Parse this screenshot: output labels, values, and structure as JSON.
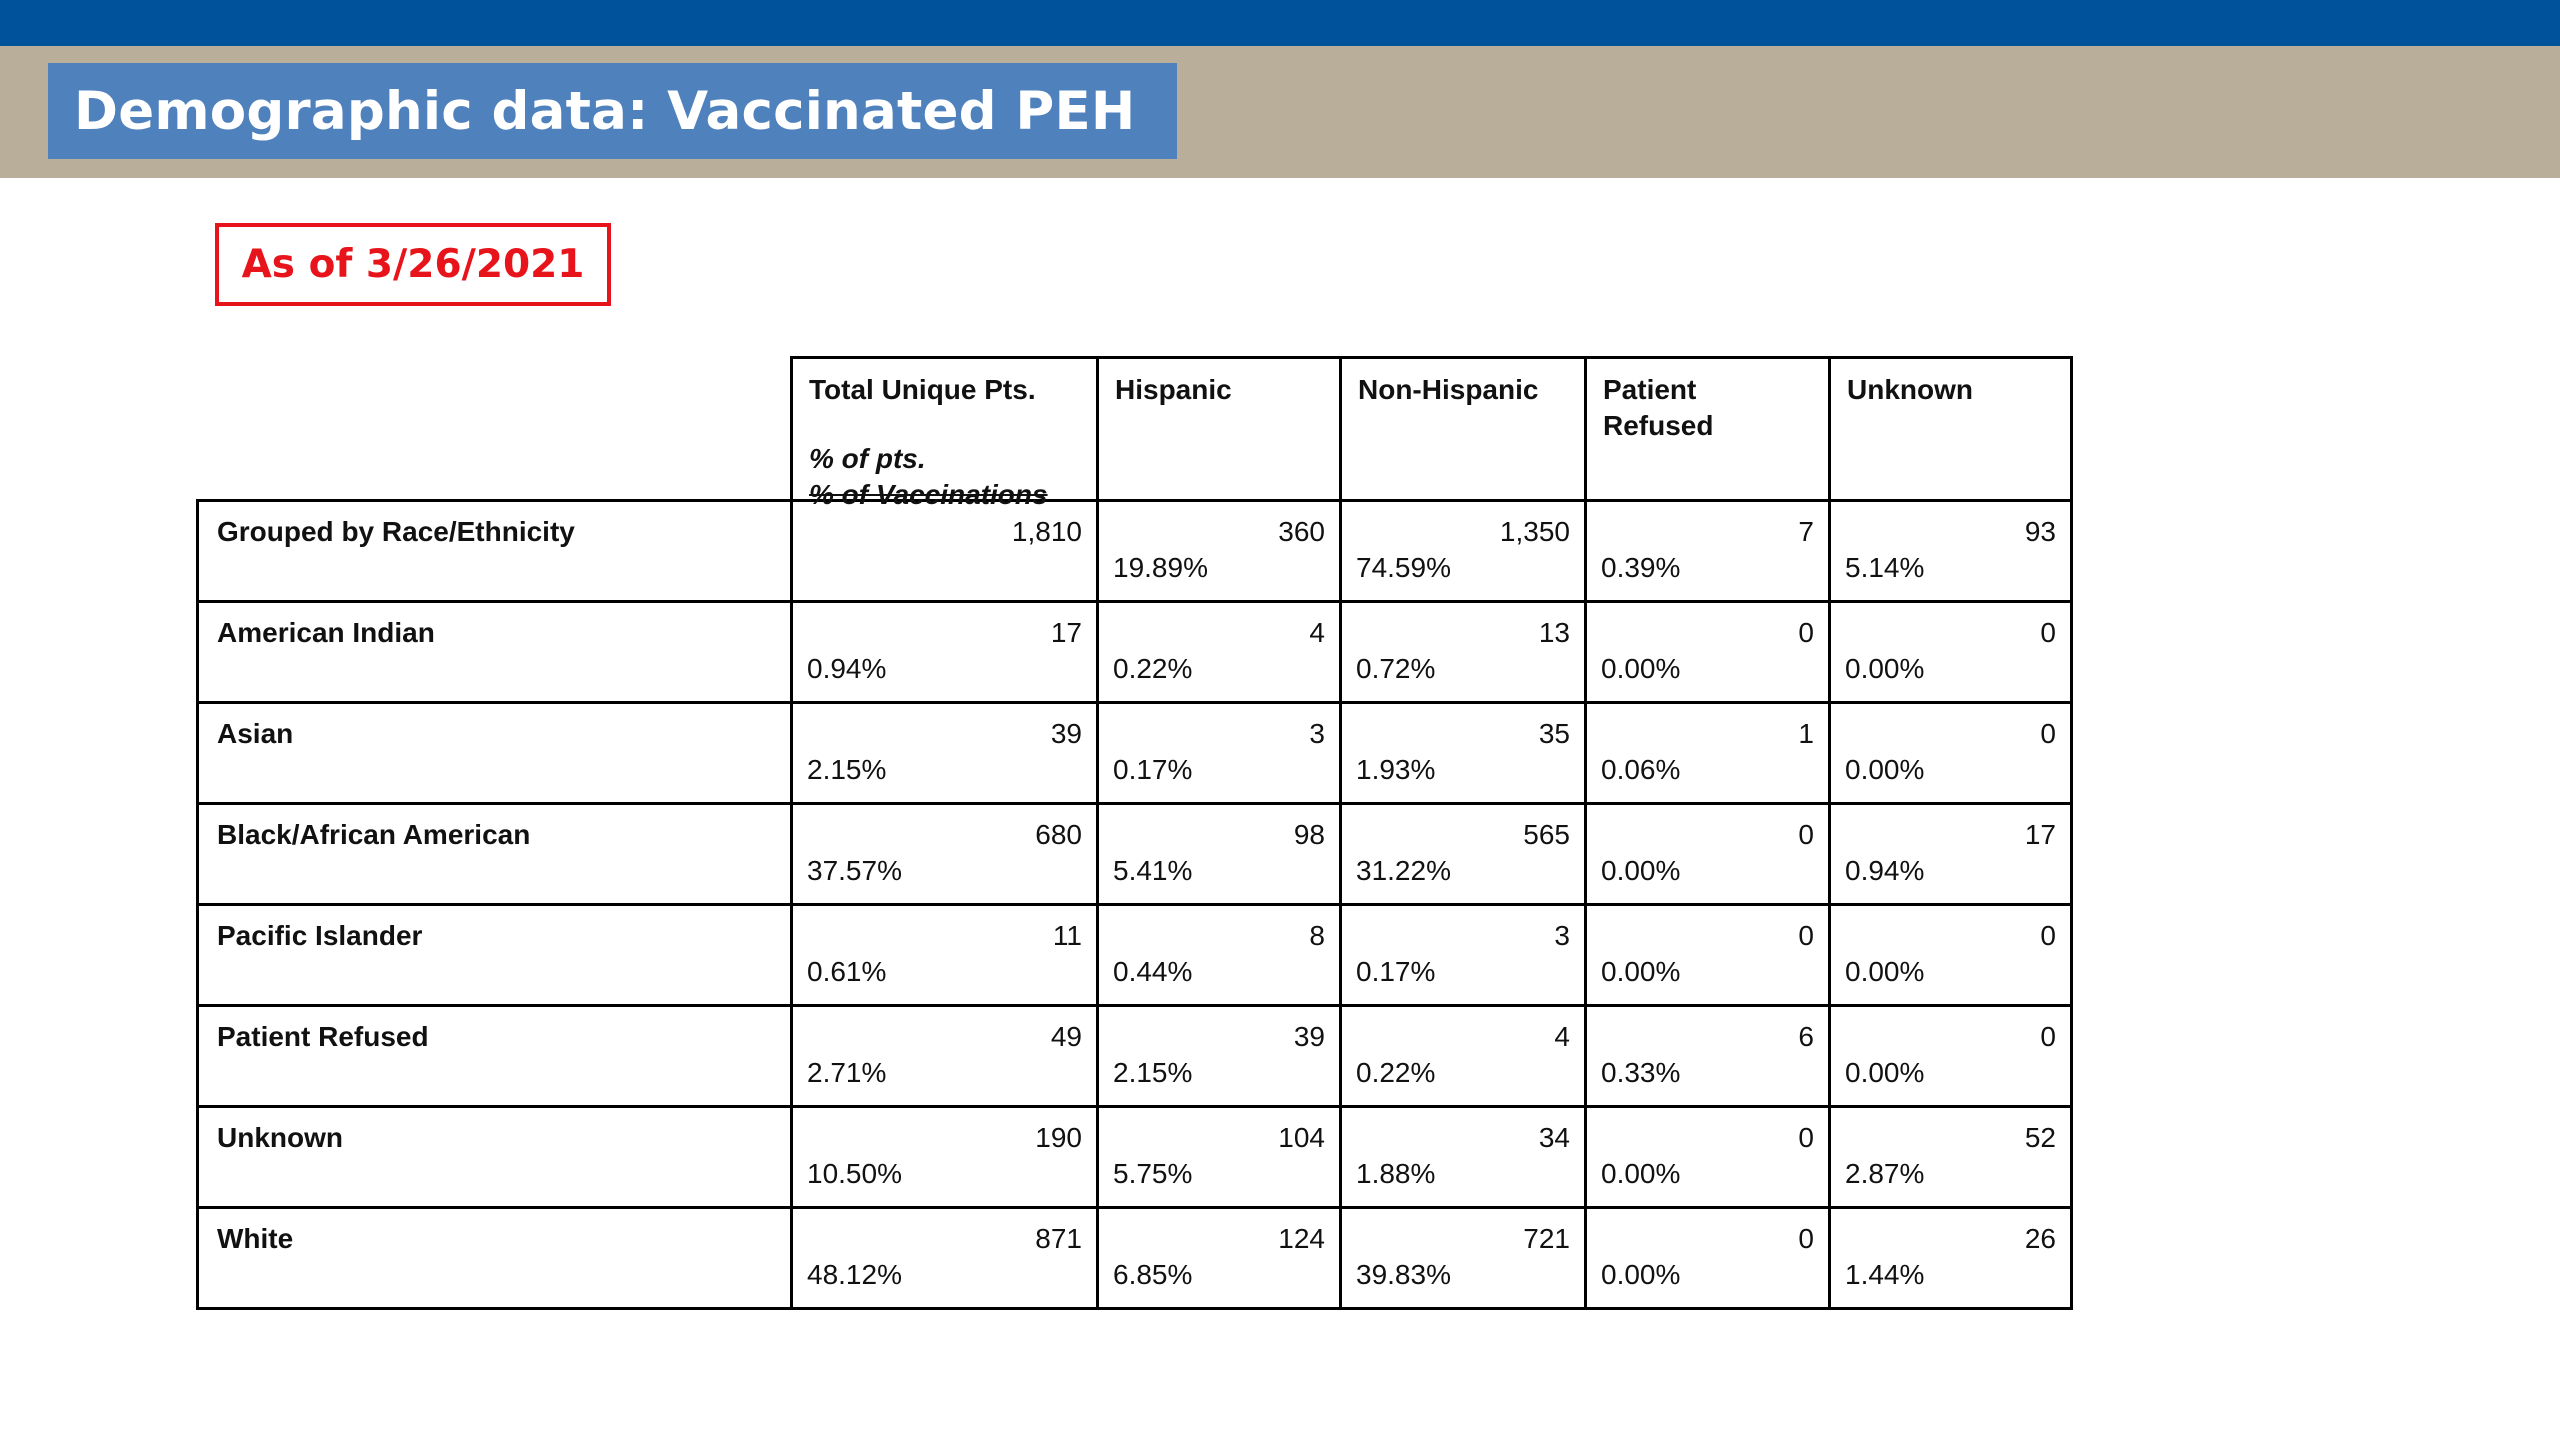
{
  "slide": {
    "title": "Demographic data: Vaccinated PEH",
    "date_label": "As of 3/26/2021",
    "colors": {
      "top_bar": "#00539b",
      "band": "#b8ae99",
      "title_box": "#4f81bd",
      "date_border": "#e8141b"
    }
  },
  "table": {
    "headers": {
      "total": "Total Unique Pts.",
      "total_sub1": "% of pts.",
      "total_sub2": "% of Vaccinations",
      "hispanic": "Hispanic",
      "non_hispanic": "Non-Hispanic",
      "patient_refused_line1": "Patient",
      "patient_refused_line2": "Refused",
      "unknown": "Unknown"
    },
    "rows": [
      {
        "label": "Grouped by Race/Ethnicity",
        "cells": [
          {
            "count": "1,810",
            "pct": ""
          },
          {
            "count": "360",
            "pct": "19.89%"
          },
          {
            "count": "1,350",
            "pct": "74.59%"
          },
          {
            "count": "7",
            "pct": "0.39%"
          },
          {
            "count": "93",
            "pct": "5.14%"
          }
        ]
      },
      {
        "label": "American Indian",
        "cells": [
          {
            "count": "17",
            "pct": "0.94%"
          },
          {
            "count": "4",
            "pct": "0.22%"
          },
          {
            "count": "13",
            "pct": "0.72%"
          },
          {
            "count": "0",
            "pct": "0.00%"
          },
          {
            "count": "0",
            "pct": "0.00%"
          }
        ]
      },
      {
        "label": "Asian",
        "cells": [
          {
            "count": "39",
            "pct": "2.15%"
          },
          {
            "count": "3",
            "pct": "0.17%"
          },
          {
            "count": "35",
            "pct": "1.93%"
          },
          {
            "count": "1",
            "pct": "0.06%"
          },
          {
            "count": "0",
            "pct": "0.00%"
          }
        ]
      },
      {
        "label": "Black/African American",
        "cells": [
          {
            "count": "680",
            "pct": "37.57%"
          },
          {
            "count": "98",
            "pct": "5.41%"
          },
          {
            "count": "565",
            "pct": "31.22%"
          },
          {
            "count": "0",
            "pct": "0.00%"
          },
          {
            "count": "17",
            "pct": "0.94%"
          }
        ]
      },
      {
        "label": "Pacific Islander",
        "cells": [
          {
            "count": "11",
            "pct": "0.61%"
          },
          {
            "count": "8",
            "pct": "0.44%"
          },
          {
            "count": "3",
            "pct": "0.17%"
          },
          {
            "count": "0",
            "pct": "0.00%"
          },
          {
            "count": "0",
            "pct": "0.00%"
          }
        ]
      },
      {
        "label": "Patient Refused",
        "cells": [
          {
            "count": "49",
            "pct": "2.71%"
          },
          {
            "count": "39",
            "pct": "2.15%"
          },
          {
            "count": "4",
            "pct": "0.22%"
          },
          {
            "count": "6",
            "pct": "0.33%"
          },
          {
            "count": "0",
            "pct": "0.00%"
          }
        ]
      },
      {
        "label": "Unknown",
        "cells": [
          {
            "count": "190",
            "pct": "10.50%"
          },
          {
            "count": "104",
            "pct": "5.75%"
          },
          {
            "count": "34",
            "pct": "1.88%"
          },
          {
            "count": "0",
            "pct": "0.00%"
          },
          {
            "count": "52",
            "pct": "2.87%"
          }
        ]
      },
      {
        "label": "White",
        "cells": [
          {
            "count": "871",
            "pct": "48.12%"
          },
          {
            "count": "124",
            "pct": "6.85%"
          },
          {
            "count": "721",
            "pct": "39.83%"
          },
          {
            "count": "0",
            "pct": "0.00%"
          },
          {
            "count": "26",
            "pct": "1.44%"
          }
        ]
      }
    ]
  }
}
